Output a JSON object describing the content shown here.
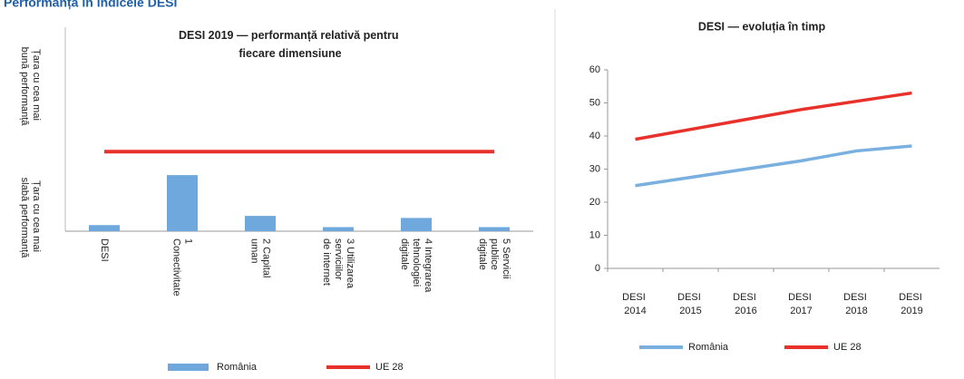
{
  "header": {
    "title": "Performanța în indicele DESI"
  },
  "chart_data": [
    {
      "type": "bar",
      "title": "DESI 2019 — performanță relativă pentru fiecare dimensiune",
      "y_label_top": "Țara cu cea mai bună performanță",
      "y_label_bottom": "Țara cu cea mai slabă performanță",
      "categories": [
        "DESI",
        "1 Conectivitate",
        "2 Capital uman",
        "3 Utilizarea serviciilor de internet",
        "4 Integrarea tehnologiei digitale",
        "5 Servicii publice digitale"
      ],
      "series": [
        {
          "name": "România",
          "type": "bar",
          "color": "#6fa8dc",
          "values": [
            3,
            27.5,
            7.5,
            2,
            6.5,
            2
          ]
        },
        {
          "name": "UE 28",
          "type": "line",
          "color": "#e8312a",
          "values": [
            39,
            39,
            39,
            39,
            39,
            39
          ]
        }
      ],
      "ylim": [
        0,
        100
      ],
      "legend": "bottom"
    },
    {
      "type": "line",
      "title": "DESI — evoluția în timp",
      "categories": [
        "DESI 2014",
        "DESI 2015",
        "DESI 2016",
        "DESI 2017",
        "DESI 2018",
        "DESI 2019"
      ],
      "series": [
        {
          "name": "România",
          "color": "#7ab0e0",
          "values": [
            25,
            27.5,
            30,
            32.5,
            35.5,
            37
          ]
        },
        {
          "name": "UE 28",
          "color": "#e8312a",
          "values": [
            39,
            42,
            45,
            48,
            50.5,
            53
          ]
        }
      ],
      "ylim": [
        0,
        60
      ],
      "yticks": [
        0,
        10,
        20,
        30,
        40,
        50,
        60
      ],
      "grid": false,
      "legend": "bottom"
    }
  ]
}
